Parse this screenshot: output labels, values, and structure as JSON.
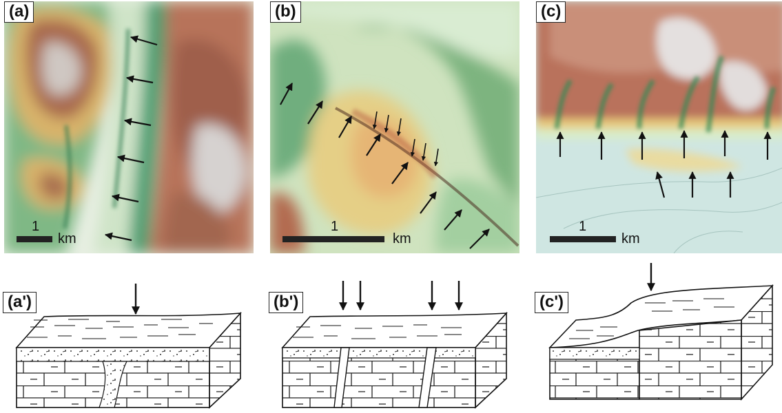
{
  "panels": {
    "a": {
      "label": "(a)",
      "scale_value": "1",
      "scale_unit": "km"
    },
    "b": {
      "label": "(b)",
      "scale_value": "1",
      "scale_unit": "km"
    },
    "c": {
      "label": "(c)",
      "scale_value": "1",
      "scale_unit": "km"
    }
  },
  "blocks": {
    "a": {
      "label": "(a')"
    },
    "b": {
      "label": "(b')"
    },
    "c": {
      "label": "(c')"
    }
  }
}
